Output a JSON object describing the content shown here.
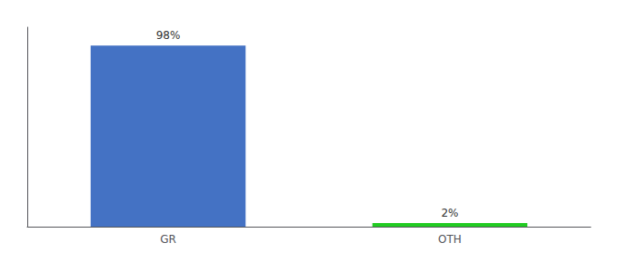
{
  "chart_data": {
    "type": "bar",
    "categories": [
      "GR",
      "OTH"
    ],
    "values": [
      98,
      2
    ],
    "value_labels": [
      "98%",
      "2%"
    ],
    "colors": [
      "#4472c4",
      "#22cc22"
    ],
    "ylim": [
      0,
      108
    ],
    "data_labels": true,
    "tick_labels": "x",
    "grid": false
  }
}
